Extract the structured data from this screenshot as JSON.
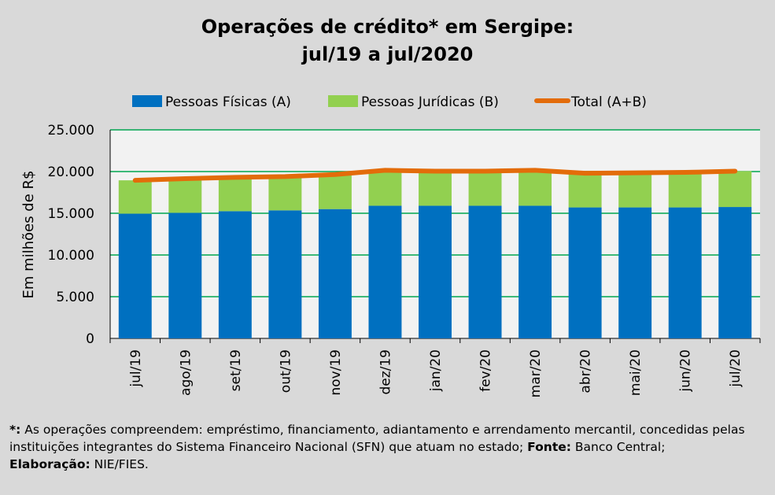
{
  "title_line1": "Operações de crédito* em Sergipe:",
  "title_line2": "jul/19 a jul/2020",
  "legend": {
    "pf": "Pessoas Físicas (A)",
    "pj": "Pessoas Jurídicas (B)",
    "total": "Total (A+B)"
  },
  "footnote": {
    "mark": "*:",
    "text1": " As operações compreendem: empréstimo, financiamento, adiantamento e arrendamento mercantil, concedidas pelas instituições integrantes do Sistema Financeiro Nacional (SFN) que atuam no estado; ",
    "fonte_label": "Fonte:",
    "fonte_text": " Banco Central;",
    "elab_label": "Elaboração:",
    "elab_text": " NIE/FIES."
  },
  "colors": {
    "pf": "#0070c0",
    "pj": "#92d050",
    "total": "#e36c0a",
    "grid": "#00a650",
    "plot_bg": "#f2f2f2",
    "page_bg": "#d9d9d9"
  },
  "chart_data": {
    "type": "bar",
    "stacked": true,
    "categories": [
      "jul/19",
      "ago/19",
      "set/19",
      "out/19",
      "nov/19",
      "dez/19",
      "jan/20",
      "fev/20",
      "mar/20",
      "abr/20",
      "mai/20",
      "jun/20",
      "jul/20"
    ],
    "series": [
      {
        "name": "Pessoas Físicas (A)",
        "type": "bar",
        "values": [
          14950,
          15050,
          15250,
          15350,
          15500,
          15900,
          15900,
          15900,
          15900,
          15700,
          15700,
          15700,
          15750
        ]
      },
      {
        "name": "Pessoas Jurídicas (B)",
        "type": "bar",
        "values": [
          4000,
          4100,
          4050,
          4050,
          4150,
          4250,
          4150,
          4150,
          4250,
          4100,
          4150,
          4200,
          4300
        ]
      },
      {
        "name": "Total (A+B)",
        "type": "line",
        "values": [
          18950,
          19150,
          19300,
          19400,
          19650,
          20150,
          20050,
          20050,
          20150,
          19800,
          19850,
          19900,
          20050
        ]
      }
    ],
    "ylabel": "Em milhões de R$",
    "ylim": [
      0,
      25000
    ],
    "yticks": [
      0,
      5000,
      10000,
      15000,
      20000,
      25000
    ],
    "ytick_labels": [
      "0",
      "5.000",
      "10.000",
      "15.000",
      "20.000",
      "25.000"
    ],
    "grid": true,
    "legend_position": "top"
  }
}
